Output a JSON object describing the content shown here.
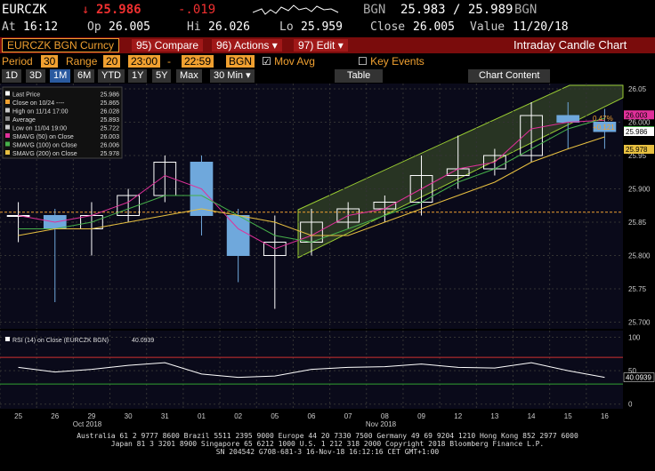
{
  "header": {
    "ticker": "EURCZK",
    "arrow": "↓",
    "last": "25.986",
    "change": "-.019",
    "source": "BGN",
    "bid_ask": "25.983 / 25.989",
    "source2": "BGN",
    "stats": [
      {
        "label": "At",
        "value": "16:12"
      },
      {
        "label": "Op",
        "value": "26.005"
      },
      {
        "label": "Hi",
        "value": "26.026"
      },
      {
        "label": "Lo",
        "value": "25.959"
      },
      {
        "label": "Close",
        "value": "26.005"
      },
      {
        "label": "Value",
        "value": "11/20/18"
      }
    ]
  },
  "toolbar": {
    "security": "EURCZK BGN Curncy",
    "buttons": [
      "95) Compare",
      "96) Actions ▾",
      "97) Edit ▾"
    ],
    "chart_name": "Intraday Candle Chart",
    "period_label": "Period",
    "period": "30",
    "range_label": "Range",
    "range": "20",
    "start": "23:00",
    "dash": "-",
    "end": "22:59",
    "source": "BGN",
    "mov_avg": "Mov Avg",
    "key_events": "Key Events",
    "ranges": [
      "1D",
      "3D",
      "1M",
      "6M",
      "YTD",
      "1Y",
      "5Y",
      "Max"
    ],
    "interval": "30 Min ▾",
    "table": "Table",
    "content": "Chart Content"
  },
  "chart_data": [
    {
      "type": "candlestick",
      "up_color": "#ffffff",
      "down_color": "#6fa8dc",
      "open": [
        25.86,
        25.86,
        25.84,
        25.86,
        25.89,
        25.94,
        25.86,
        25.8,
        25.82,
        25.85,
        25.87,
        25.88,
        25.92,
        25.93,
        25.95,
        26.01,
        26.0
      ],
      "high": [
        25.88,
        25.87,
        25.88,
        25.9,
        25.95,
        25.95,
        25.87,
        25.86,
        25.87,
        25.88,
        25.89,
        25.95,
        25.98,
        25.96,
        26.03,
        26.03,
        26.02
      ],
      "low": [
        25.82,
        25.73,
        25.8,
        25.85,
        25.88,
        25.83,
        25.76,
        25.72,
        25.8,
        25.84,
        25.85,
        25.86,
        25.9,
        25.92,
        25.94,
        25.96,
        25.96
      ],
      "close": [
        25.86,
        25.84,
        25.86,
        25.89,
        25.94,
        25.86,
        25.8,
        25.82,
        25.85,
        25.87,
        25.88,
        25.92,
        25.93,
        25.95,
        26.01,
        26.0,
        25.986
      ],
      "ylim": [
        25.69,
        26.058
      ],
      "yticks": [
        {
          "value": 25.7,
          "label": "25.700"
        },
        25.75,
        {
          "value": 25.8,
          "label": "25.800"
        },
        25.85,
        {
          "value": 25.9,
          "label": "25.900"
        },
        25.95,
        {
          "value": 26.0,
          "label": "26.000"
        },
        26.05
      ],
      "grid": true,
      "stats": [
        {
          "name": "Last Price",
          "value": 25.986,
          "color": "#ffffff"
        },
        {
          "name": "Close on 10/24 ----",
          "value": 25.865,
          "color": "#f0a030"
        },
        {
          "name": "High on 11/14 17:00",
          "value": 26.028,
          "color": "#cccccc"
        },
        {
          "name": "Average",
          "value": 25.893,
          "color": "#888888"
        },
        {
          "name": "Low on 11/04 19:00",
          "value": 25.722,
          "color": "#cccccc"
        }
      ],
      "series": [
        {
          "name": "SMAVG (50) on Close",
          "color": "#e0309a",
          "last": 26.003,
          "values": [
            25.86,
            25.85,
            25.86,
            25.88,
            25.92,
            25.9,
            25.84,
            25.81,
            25.83,
            25.86,
            25.87,
            25.9,
            25.93,
            25.94,
            25.99,
            26.0,
            26.003
          ]
        },
        {
          "name": "SMAVG (100) on Close",
          "color": "#46b04a",
          "last": 26.006,
          "values": [
            25.84,
            25.84,
            25.85,
            25.87,
            25.89,
            25.89,
            25.86,
            25.83,
            25.82,
            25.84,
            25.86,
            25.88,
            25.91,
            25.93,
            25.96,
            25.99,
            26.006
          ]
        },
        {
          "name": "SMAVG (200) on Close",
          "color": "#e8c040",
          "last": 25.978,
          "values": [
            25.83,
            25.84,
            25.84,
            25.85,
            25.86,
            25.87,
            25.86,
            25.85,
            25.83,
            25.83,
            25.85,
            25.87,
            25.89,
            25.91,
            25.94,
            25.96,
            25.978
          ]
        }
      ],
      "annotations": [
        "0.47%",
        "+0.121"
      ]
    },
    {
      "type": "line",
      "categories": [
        "25",
        "26",
        "29",
        "30",
        "31",
        "01",
        "02",
        "05",
        "06",
        "07",
        "08",
        "09",
        "12",
        "13",
        "14",
        "15",
        "16"
      ],
      "x_groups": [
        "Oct 2018",
        "Nov 2018"
      ],
      "series": [
        {
          "name": "RSI (14) on Close (EURCZK BGN)",
          "color": "#ffffff",
          "last": 40.0939,
          "values": [
            55,
            48,
            52,
            58,
            62,
            45,
            40,
            42,
            52,
            55,
            56,
            60,
            55,
            54,
            62,
            50,
            40.0939
          ]
        }
      ],
      "levels": [
        {
          "value": 70,
          "color": "#d03030"
        },
        {
          "value": 30,
          "color": "#30a030"
        }
      ],
      "ylim": [
        -7,
        110
      ],
      "yticks": [
        0,
        50,
        100
      ],
      "grid": true
    }
  ],
  "footer": [
    "Australia 61 2 9777 8600 Brazil 5511 2395 9000 Europe 44 20 7330 7500 Germany 49 69 9204 1210 Hong Kong 852 2977 6000",
    "Japan 81 3 3201 8900      Singapore 65 6212 1000      U.S. 1 212 318 2000      Copyright 2018 Bloomberg Finance L.P.",
    "SN 204542 G708-681-3 16-Nov-18 16:12:16 CET  GMT+1:00"
  ]
}
